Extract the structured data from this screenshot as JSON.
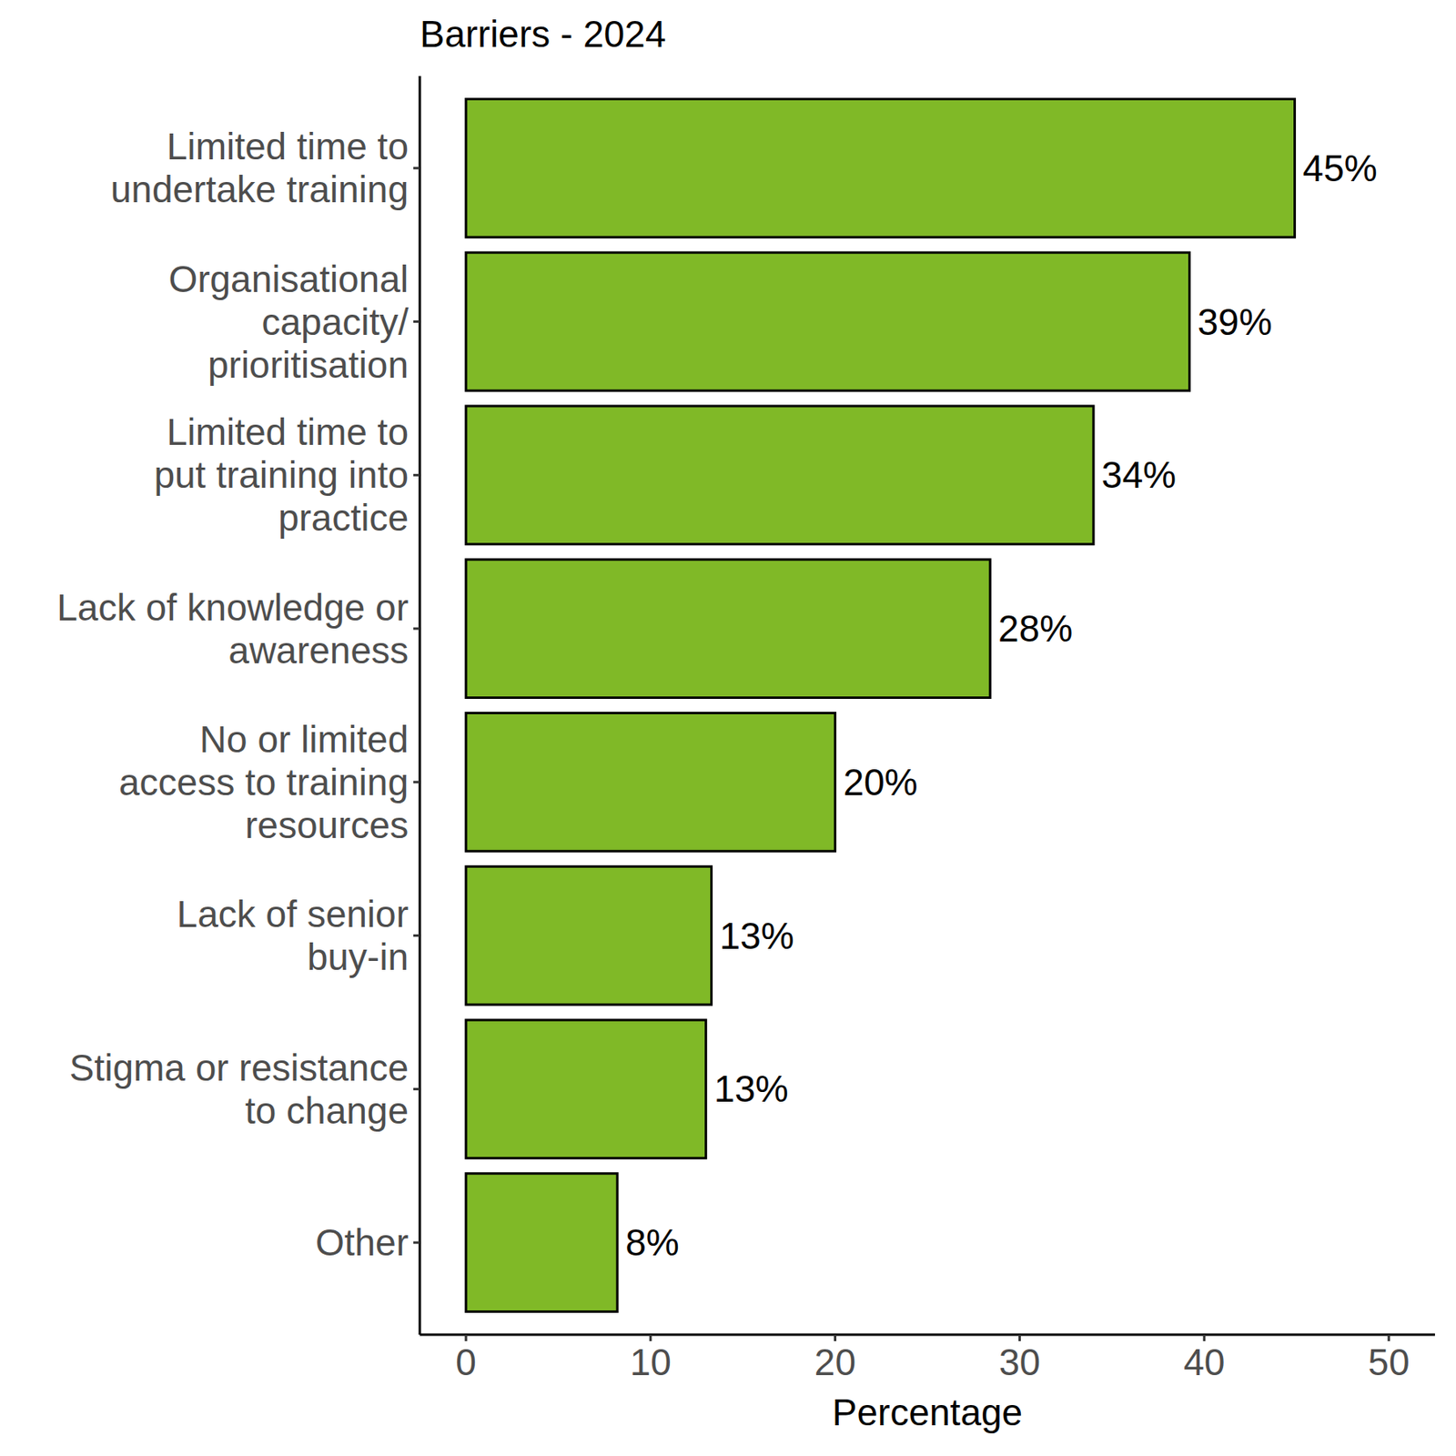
{
  "chart_data": {
    "type": "bar",
    "orientation": "horizontal",
    "title": "Barriers - 2024",
    "x_label": "Percentage",
    "categories": [
      "Limited time to\nundertake training",
      "Organisational\ncapacity/\nprioritisation",
      "Limited time to\nput training into\npractice",
      "Lack of knowledge or\nawareness",
      "No or limited\naccess to training\nresources",
      "Lack of senior\nbuy-in",
      "Stigma or resistance\nto change",
      "Other"
    ],
    "values": [
      44.9,
      39.2,
      34.0,
      28.4,
      20.0,
      13.3,
      13.0,
      8.2
    ],
    "value_labels": [
      "45%",
      "39%",
      "34%",
      "28%",
      "20%",
      "13%",
      "13%",
      "8%"
    ],
    "data_labels": true,
    "color": "#80b927",
    "xlim": [
      -2.5,
      52.5
    ],
    "xticks": [
      0,
      10,
      20,
      30,
      40,
      50
    ],
    "grid": false
  }
}
